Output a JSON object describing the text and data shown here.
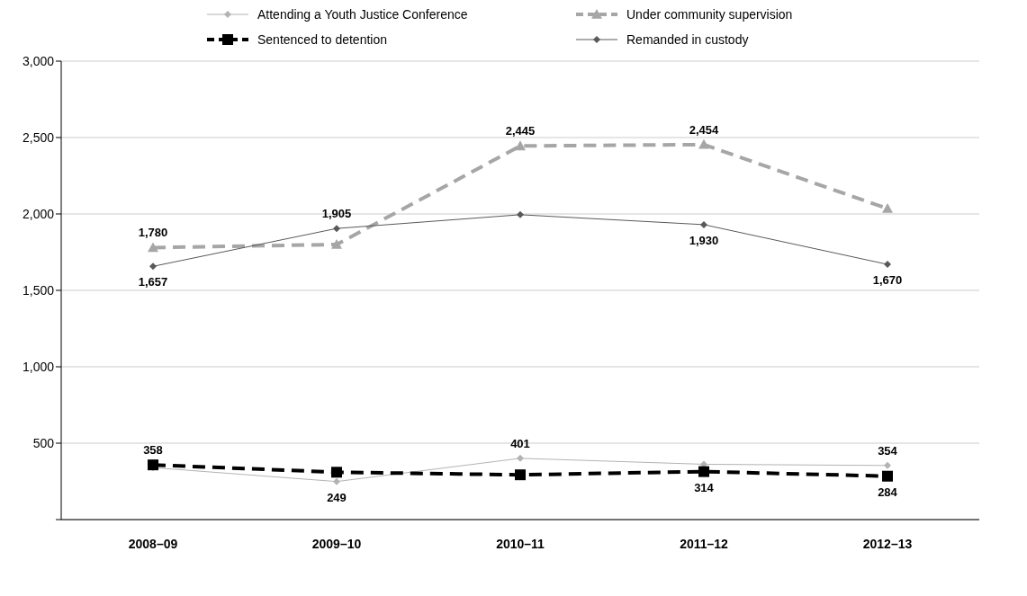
{
  "chart_data": {
    "type": "line",
    "categories": [
      "2008–09",
      "2009–10",
      "2010–11",
      "2011–12",
      "2012–13"
    ],
    "series": [
      {
        "name": "Attending a Youth Justice Conference",
        "color": "#b3b3b3",
        "marker": "diamond",
        "line_style": "solid",
        "values": [
          340,
          249,
          401,
          362,
          354
        ],
        "value_labels": [
          null,
          "249",
          "401",
          null,
          "354"
        ]
      },
      {
        "name": "Under community supervision",
        "color": "#a6a6a6",
        "marker": "triangle",
        "line_style": "dashed",
        "values": [
          1780,
          1800,
          2445,
          2454,
          2035
        ],
        "value_labels": [
          "1,780",
          null,
          "2,445",
          "2,454",
          null
        ]
      },
      {
        "name": "Sentenced to detention",
        "color": "#000000",
        "marker": "square",
        "line_style": "dashed",
        "values": [
          358,
          310,
          293,
          314,
          284
        ],
        "value_labels": [
          "358",
          null,
          null,
          "314",
          "284"
        ]
      },
      {
        "name": "Remanded in custody",
        "color": "#595959",
        "marker": "diamond",
        "line_style": "solid",
        "values": [
          1657,
          1905,
          1995,
          1930,
          1670
        ],
        "value_labels": [
          "1,657",
          "1,905",
          null,
          "1,930",
          "1,670"
        ]
      }
    ],
    "ylim": [
      0,
      3000
    ],
    "yticks": [
      {
        "value": 0,
        "label": null
      },
      500,
      {
        "value": 1000,
        "label": "1,000"
      },
      {
        "value": 1500,
        "label": "1,500"
      },
      {
        "value": 2000,
        "label": "2,000"
      },
      {
        "value": 2500,
        "label": "2,500"
      },
      {
        "value": 3000,
        "label": "3,000"
      }
    ],
    "grid": "y",
    "legend": "top"
  }
}
